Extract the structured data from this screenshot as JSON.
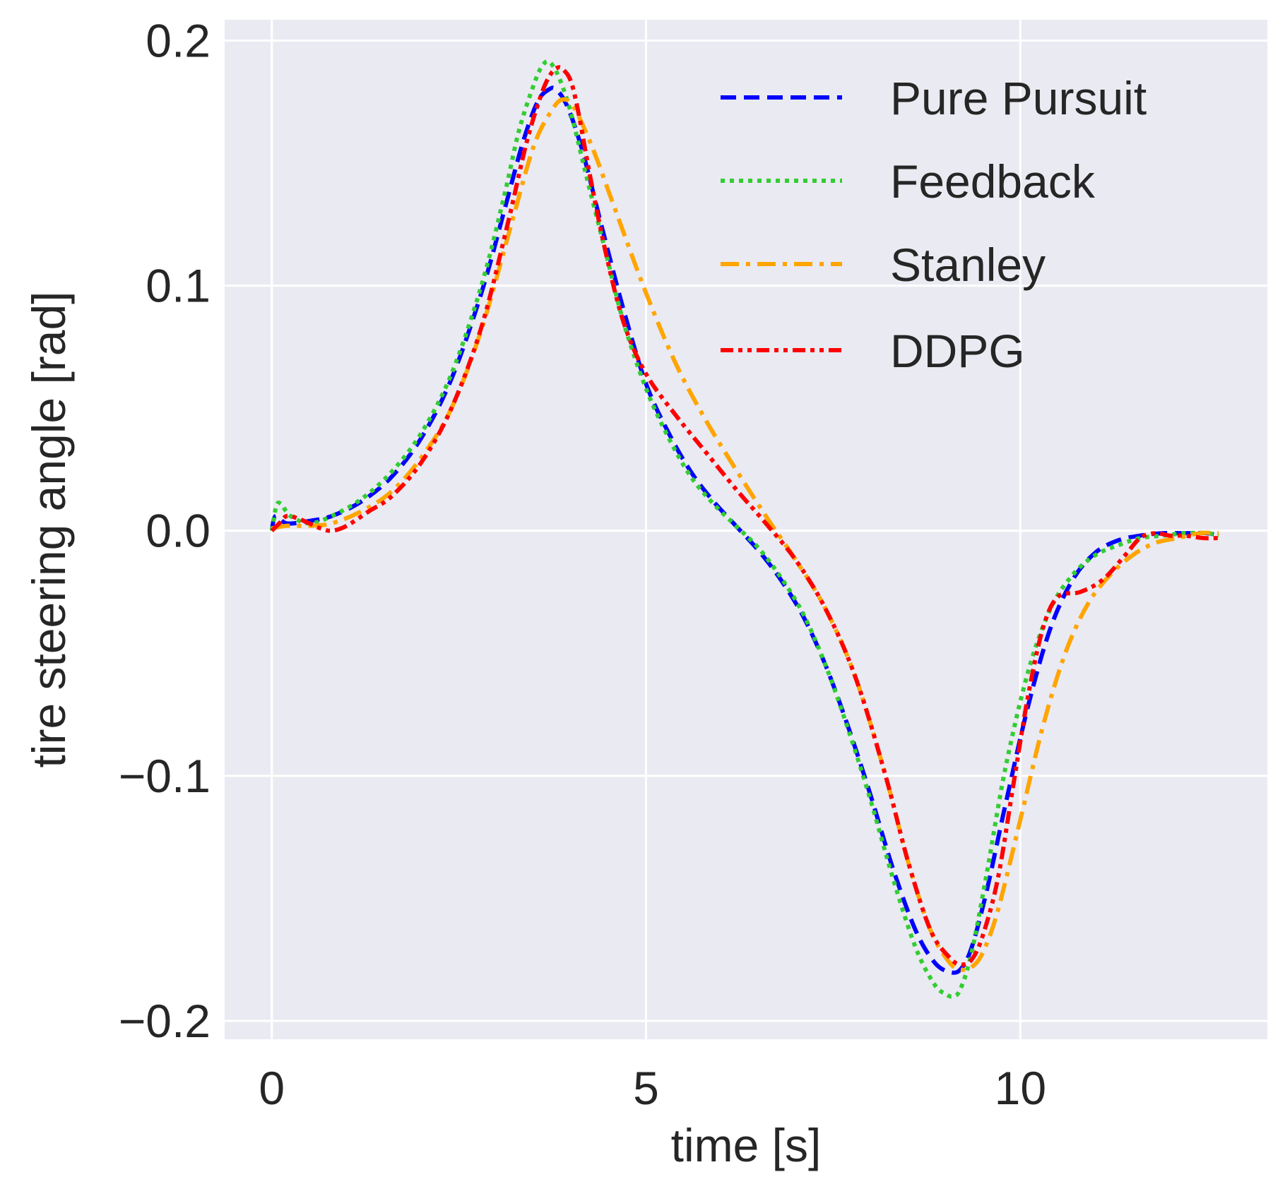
{
  "chart_data": {
    "type": "line",
    "title": "",
    "xlabel": "time [s]",
    "ylabel": "tire steering angle [rad]",
    "xlim": [
      -0.63,
      13.3
    ],
    "ylim": [
      -0.2075,
      0.2085
    ],
    "xticks": [
      0,
      5,
      10
    ],
    "xtick_labels": [
      "0",
      "5",
      "10"
    ],
    "yticks": [
      -0.2,
      -0.1,
      0.0,
      0.1,
      0.2
    ],
    "ytick_labels": [
      "−0.2",
      "−0.1",
      "0.0",
      "0.1",
      "0.2"
    ],
    "grid": true,
    "background": "#eaeaf2",
    "legend_position": "top-right",
    "series": [
      {
        "name": "Pure Pursuit",
        "color": "#0000ff",
        "dash": "dashed",
        "x": [
          0,
          0.05,
          0.2,
          0.5,
          0.8,
          1.2,
          1.6,
          2.0,
          2.4,
          2.8,
          3.1,
          3.35,
          3.55,
          3.7,
          3.8,
          3.95,
          4.15,
          4.4,
          4.7,
          5.0,
          5.3,
          5.6,
          5.9,
          6.2,
          6.5,
          6.8,
          7.1,
          7.4,
          7.7,
          8.0,
          8.3,
          8.6,
          8.85,
          9.05,
          9.2,
          9.35,
          9.55,
          9.8,
          10.1,
          10.4,
          10.7,
          11.0,
          11.3,
          11.6,
          11.9,
          12.2,
          12.5,
          12.65
        ],
        "values": [
          0.0,
          0.006,
          0.003,
          0.004,
          0.006,
          0.012,
          0.022,
          0.038,
          0.062,
          0.097,
          0.13,
          0.158,
          0.175,
          0.18,
          0.18,
          0.173,
          0.155,
          0.125,
          0.09,
          0.06,
          0.04,
          0.024,
          0.012,
          0.002,
          -0.008,
          -0.02,
          -0.035,
          -0.055,
          -0.08,
          -0.108,
          -0.138,
          -0.163,
          -0.176,
          -0.18,
          -0.179,
          -0.17,
          -0.147,
          -0.112,
          -0.072,
          -0.04,
          -0.02,
          -0.009,
          -0.004,
          -0.002,
          -0.001,
          -0.001,
          -0.001,
          -0.002
        ]
      },
      {
        "name": "Feedback",
        "color": "#32cd32",
        "dash": "dotted",
        "x": [
          0,
          0.06,
          0.12,
          0.25,
          0.5,
          0.8,
          1.2,
          1.6,
          2.0,
          2.4,
          2.8,
          3.1,
          3.3,
          3.5,
          3.62,
          3.72,
          3.85,
          4.0,
          4.2,
          4.45,
          4.7,
          5.0,
          5.3,
          5.6,
          5.9,
          6.2,
          6.5,
          6.8,
          7.1,
          7.4,
          7.7,
          8.0,
          8.3,
          8.6,
          8.85,
          9.0,
          9.1,
          9.2,
          9.35,
          9.55,
          9.8,
          10.1,
          10.4,
          10.7,
          11.0,
          11.3,
          11.6,
          11.9,
          12.2,
          12.5,
          12.65
        ],
        "values": [
          0.0,
          0.01,
          0.011,
          0.006,
          0.003,
          0.006,
          0.013,
          0.024,
          0.04,
          0.064,
          0.1,
          0.136,
          0.163,
          0.182,
          0.19,
          0.191,
          0.184,
          0.17,
          0.145,
          0.115,
          0.085,
          0.058,
          0.038,
          0.022,
          0.011,
          0.002,
          -0.007,
          -0.019,
          -0.034,
          -0.055,
          -0.081,
          -0.11,
          -0.142,
          -0.17,
          -0.185,
          -0.189,
          -0.19,
          -0.187,
          -0.172,
          -0.14,
          -0.097,
          -0.058,
          -0.032,
          -0.018,
          -0.01,
          -0.006,
          -0.003,
          -0.002,
          -0.001,
          -0.001,
          -0.002
        ]
      },
      {
        "name": "Stanley",
        "color": "#ffa500",
        "dash": "dashdot",
        "x": [
          0,
          0.2,
          0.5,
          0.8,
          1.2,
          1.6,
          2.0,
          2.4,
          2.8,
          3.2,
          3.5,
          3.75,
          3.9,
          4.05,
          4.3,
          4.6,
          5.0,
          5.4,
          5.8,
          6.2,
          6.6,
          7.0,
          7.4,
          7.8,
          8.2,
          8.5,
          8.8,
          9.05,
          9.2,
          9.35,
          9.5,
          9.7,
          10.0,
          10.3,
          10.6,
          10.9,
          11.2,
          11.5,
          11.8,
          12.1,
          12.4,
          12.65
        ],
        "values": [
          0.001,
          0.002,
          0.002,
          0.003,
          0.008,
          0.016,
          0.03,
          0.05,
          0.082,
          0.125,
          0.157,
          0.172,
          0.176,
          0.172,
          0.155,
          0.13,
          0.097,
          0.068,
          0.045,
          0.025,
          0.006,
          -0.012,
          -0.032,
          -0.06,
          -0.1,
          -0.135,
          -0.163,
          -0.176,
          -0.179,
          -0.178,
          -0.172,
          -0.155,
          -0.118,
          -0.08,
          -0.05,
          -0.03,
          -0.018,
          -0.01,
          -0.005,
          -0.003,
          -0.001,
          -0.001
        ]
      },
      {
        "name": "DDPG",
        "color": "#ff0000",
        "dash": "dashdotdot",
        "x": [
          0,
          0.1,
          0.2,
          0.35,
          0.5,
          0.65,
          0.8,
          1.0,
          1.3,
          1.6,
          2.0,
          2.4,
          2.8,
          3.15,
          3.4,
          3.6,
          3.72,
          3.82,
          3.9,
          4.0,
          4.1,
          4.25,
          4.45,
          4.7,
          5.0,
          5.4,
          5.8,
          6.2,
          6.6,
          7.0,
          7.4,
          7.8,
          8.2,
          8.5,
          8.8,
          9.05,
          9.2,
          9.35,
          9.5,
          9.7,
          9.9,
          10.1,
          10.3,
          10.5,
          10.8,
          11.1,
          11.4,
          11.6,
          11.8,
          12.0,
          12.2,
          12.45,
          12.65
        ],
        "values": [
          0.0,
          0.003,
          0.006,
          0.005,
          0.003,
          0.001,
          0.0,
          0.002,
          0.008,
          0.014,
          0.028,
          0.05,
          0.083,
          0.125,
          0.158,
          0.178,
          0.186,
          0.189,
          0.188,
          0.183,
          0.17,
          0.145,
          0.115,
          0.085,
          0.064,
          0.047,
          0.032,
          0.017,
          0.003,
          -0.012,
          -0.032,
          -0.06,
          -0.1,
          -0.135,
          -0.163,
          -0.174,
          -0.177,
          -0.175,
          -0.165,
          -0.142,
          -0.105,
          -0.068,
          -0.04,
          -0.027,
          -0.025,
          -0.02,
          -0.01,
          -0.003,
          -0.001,
          -0.002,
          -0.002,
          -0.003,
          -0.003
        ]
      }
    ]
  }
}
